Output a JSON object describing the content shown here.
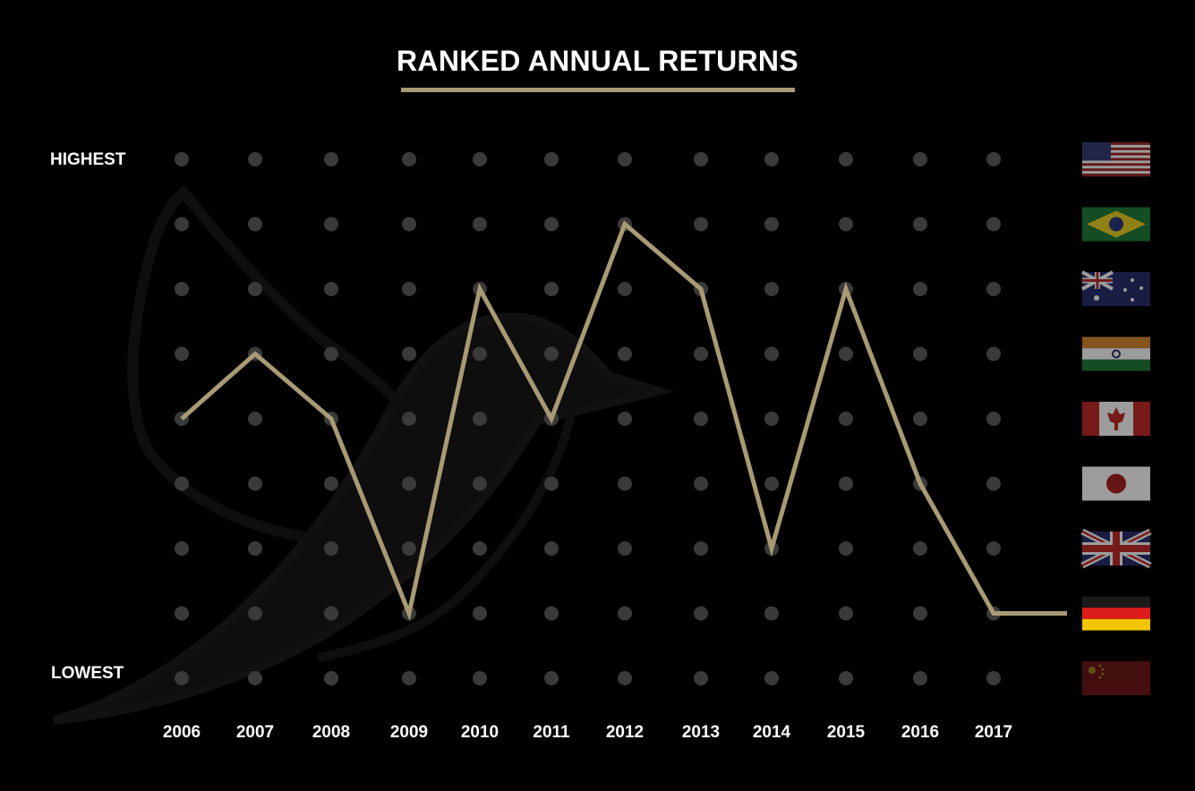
{
  "chart_data": {
    "type": "line",
    "title": "RANKED ANNUAL RETURNS",
    "y_top_label": "HIGHEST",
    "y_bottom_label": "LOWEST",
    "x": [
      "2006",
      "2007",
      "2008",
      "2009",
      "2010",
      "2011",
      "2012",
      "2013",
      "2014",
      "2015",
      "2016",
      "2017"
    ],
    "rank_levels": 9,
    "series": [
      {
        "values": [
          5,
          4,
          5,
          8,
          3,
          5,
          2,
          3,
          7,
          3,
          6,
          8
        ],
        "color": "#a89a74"
      }
    ],
    "rank_scale": {
      "note_rank_1": "HIGHEST",
      "note_rank_9": "LOWEST"
    },
    "flag_legend": [
      {
        "rank": 1,
        "icon": "usa-flag-icon"
      },
      {
        "rank": 2,
        "icon": "brazil-flag-icon"
      },
      {
        "rank": 3,
        "icon": "australia-flag-icon"
      },
      {
        "rank": 4,
        "icon": "india-flag-icon"
      },
      {
        "rank": 5,
        "icon": "canada-flag-icon"
      },
      {
        "rank": 6,
        "icon": "japan-flag-icon"
      },
      {
        "rank": 7,
        "icon": "uk-flag-icon"
      },
      {
        "rank": 8,
        "icon": "germany-flag-icon"
      },
      {
        "rank": 9,
        "icon": "china-flag-icon"
      }
    ],
    "grid": true
  },
  "colors": {
    "background": "#000000",
    "accent": "#a89a74",
    "grid_dot": "#3a3a3a",
    "text": "#ffffff",
    "bird_watermark": "#141414"
  }
}
